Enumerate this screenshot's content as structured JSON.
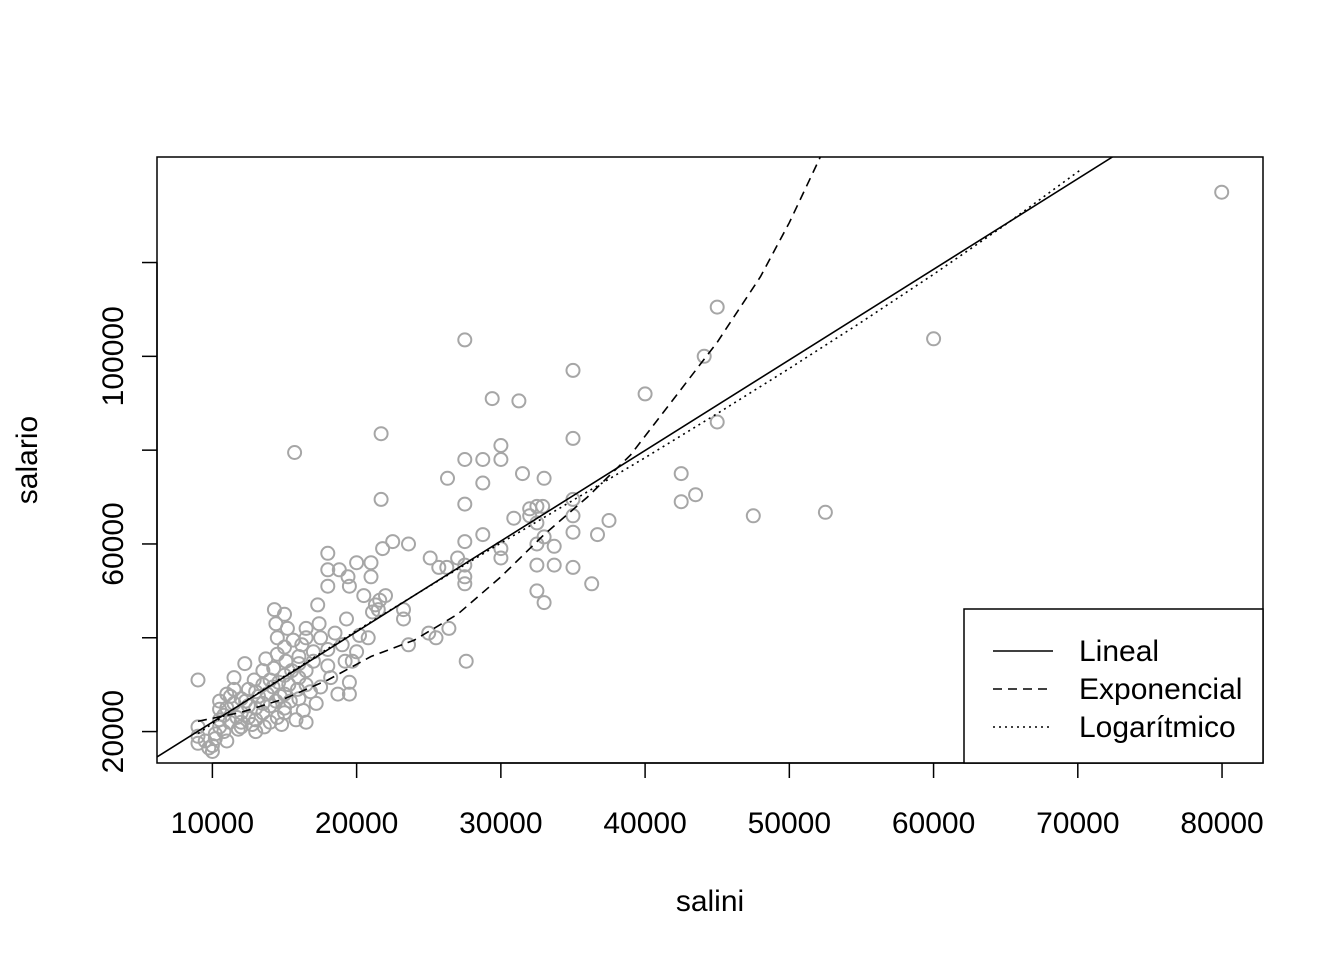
{
  "chart_data": {
    "type": "scatter",
    "title": "",
    "xlabel": "salini",
    "ylabel": "salario",
    "xlim": [
      6160,
      82840
    ],
    "ylim": [
      13300,
      142500
    ],
    "xticks": [
      10000,
      20000,
      30000,
      40000,
      50000,
      60000,
      70000,
      80000
    ],
    "xtick_labels": [
      "10000",
      "20000",
      "30000",
      "40000",
      "50000",
      "60000",
      "70000",
      "80000"
    ],
    "yticks": [
      20000,
      40000,
      60000,
      80000,
      100000,
      120000
    ],
    "ytick_labels": [
      "20000",
      "",
      "60000",
      "",
      "100000",
      ""
    ],
    "grid": false,
    "legend_position": "bottom-right",
    "colors": {
      "points": "#a6a6a6",
      "lines": "#000000"
    },
    "points": [
      [
        9000,
        31000
      ],
      [
        9000,
        21000
      ],
      [
        9000,
        19000
      ],
      [
        9000,
        17500
      ],
      [
        9500,
        18000
      ],
      [
        9750,
        16500
      ],
      [
        10000,
        15750
      ],
      [
        10000,
        17000
      ],
      [
        10200,
        18500
      ],
      [
        10200,
        19500
      ],
      [
        10500,
        21000
      ],
      [
        10500,
        22500
      ],
      [
        10500,
        24750
      ],
      [
        10500,
        26500
      ],
      [
        10800,
        20000
      ],
      [
        10800,
        23500
      ],
      [
        11000,
        25000
      ],
      [
        11000,
        28000
      ],
      [
        11000,
        18000
      ],
      [
        11200,
        22000
      ],
      [
        11250,
        27500
      ],
      [
        11500,
        29000
      ],
      [
        11500,
        31500
      ],
      [
        11500,
        26000
      ],
      [
        11700,
        23000
      ],
      [
        11800,
        20500
      ],
      [
        12000,
        24000
      ],
      [
        12000,
        27000
      ],
      [
        12000,
        22000
      ],
      [
        12000,
        21000
      ],
      [
        12250,
        34500
      ],
      [
        12300,
        26500
      ],
      [
        12500,
        25500
      ],
      [
        12500,
        29000
      ],
      [
        12500,
        23000
      ],
      [
        12750,
        21500
      ],
      [
        12900,
        31000
      ],
      [
        13000,
        28500
      ],
      [
        13000,
        25000
      ],
      [
        13000,
        22500
      ],
      [
        13000,
        20000
      ],
      [
        13200,
        27500
      ],
      [
        13500,
        26000
      ],
      [
        13500,
        30000
      ],
      [
        13500,
        33000
      ],
      [
        13500,
        24000
      ],
      [
        13600,
        21000
      ],
      [
        13700,
        35500
      ],
      [
        13800,
        28000
      ],
      [
        14000,
        25500
      ],
      [
        14000,
        31000
      ],
      [
        14000,
        22000
      ],
      [
        14200,
        29500
      ],
      [
        14250,
        33500
      ],
      [
        14300,
        46000
      ],
      [
        14400,
        43000
      ],
      [
        14400,
        26500
      ],
      [
        14500,
        40000
      ],
      [
        14500,
        36500
      ],
      [
        14500,
        23000
      ],
      [
        14600,
        30500
      ],
      [
        14700,
        27500
      ],
      [
        14800,
        21500
      ],
      [
        15000,
        25000
      ],
      [
        15000,
        32000
      ],
      [
        15000,
        38000
      ],
      [
        15000,
        45000
      ],
      [
        15000,
        28000
      ],
      [
        15000,
        24000
      ],
      [
        15100,
        35000
      ],
      [
        15200,
        42000
      ],
      [
        15300,
        30000
      ],
      [
        15400,
        26500
      ],
      [
        15500,
        33000
      ],
      [
        15600,
        39500
      ],
      [
        15700,
        79500
      ],
      [
        15800,
        22500
      ],
      [
        15900,
        29000
      ],
      [
        16000,
        36000
      ],
      [
        16000,
        31500
      ],
      [
        16000,
        27000
      ],
      [
        16000,
        34500
      ],
      [
        16200,
        38500
      ],
      [
        16300,
        24500
      ],
      [
        16500,
        42000
      ],
      [
        16500,
        30000
      ],
      [
        16500,
        22000
      ],
      [
        16500,
        40000
      ],
      [
        16500,
        33000
      ],
      [
        16800,
        28500
      ],
      [
        17000,
        37000
      ],
      [
        17000,
        35000
      ],
      [
        17200,
        26000
      ],
      [
        17300,
        47000
      ],
      [
        17400,
        43000
      ],
      [
        17500,
        29500
      ],
      [
        17500,
        40000
      ],
      [
        18000,
        58000
      ],
      [
        18000,
        54500
      ],
      [
        18000,
        51000
      ],
      [
        18000,
        37500
      ],
      [
        18000,
        34000
      ],
      [
        18200,
        31500
      ],
      [
        18500,
        41000
      ],
      [
        18700,
        28000
      ],
      [
        18800,
        54500
      ],
      [
        19000,
        38500
      ],
      [
        19200,
        35000
      ],
      [
        19300,
        44000
      ],
      [
        19400,
        53000
      ],
      [
        19500,
        51000
      ],
      [
        19500,
        30500
      ],
      [
        19500,
        28000
      ],
      [
        19700,
        35000
      ],
      [
        20000,
        56000
      ],
      [
        20000,
        37000
      ],
      [
        20200,
        40500
      ],
      [
        20500,
        49000
      ],
      [
        20800,
        40000
      ],
      [
        21000,
        56000
      ],
      [
        21000,
        53000
      ],
      [
        21100,
        45500
      ],
      [
        21300,
        47000
      ],
      [
        21500,
        46000
      ],
      [
        21600,
        48000
      ],
      [
        21700,
        83500
      ],
      [
        21700,
        69500
      ],
      [
        21800,
        59000
      ],
      [
        22000,
        49000
      ],
      [
        22500,
        60500
      ],
      [
        23250,
        46000
      ],
      [
        23250,
        44000
      ],
      [
        23600,
        38500
      ],
      [
        23600,
        60000
      ],
      [
        25000,
        41000
      ],
      [
        25100,
        57000
      ],
      [
        25500,
        40000
      ],
      [
        25700,
        55000
      ],
      [
        26250,
        55000
      ],
      [
        26300,
        74000
      ],
      [
        26400,
        42000
      ],
      [
        27000,
        57000
      ],
      [
        27500,
        78000
      ],
      [
        27500,
        68500
      ],
      [
        27500,
        60500
      ],
      [
        27500,
        55500
      ],
      [
        27500,
        53000
      ],
      [
        27500,
        51500
      ],
      [
        27500,
        103500
      ],
      [
        27600,
        35000
      ],
      [
        28750,
        78000
      ],
      [
        28750,
        73000
      ],
      [
        28750,
        62000
      ],
      [
        29400,
        91000
      ],
      [
        30000,
        81000
      ],
      [
        30000,
        78000
      ],
      [
        30000,
        59000
      ],
      [
        30000,
        57000
      ],
      [
        30900,
        65500
      ],
      [
        31250,
        90500
      ],
      [
        31500,
        75000
      ],
      [
        32000,
        67500
      ],
      [
        32000,
        66000
      ],
      [
        32500,
        68000
      ],
      [
        32500,
        64500
      ],
      [
        32500,
        60000
      ],
      [
        32500,
        55500
      ],
      [
        32500,
        50000
      ],
      [
        32900,
        68000
      ],
      [
        33000,
        74000
      ],
      [
        33000,
        47500
      ],
      [
        33000,
        61500
      ],
      [
        33700,
        59500
      ],
      [
        33700,
        55500
      ],
      [
        35000,
        97000
      ],
      [
        35000,
        82500
      ],
      [
        35000,
        69500
      ],
      [
        35000,
        66000
      ],
      [
        35000,
        62500
      ],
      [
        35000,
        55000
      ],
      [
        36300,
        51500
      ],
      [
        36700,
        62000
      ],
      [
        37500,
        65000
      ],
      [
        40000,
        92000
      ],
      [
        42500,
        75000
      ],
      [
        42500,
        69000
      ],
      [
        43500,
        70500
      ],
      [
        44100,
        100000
      ],
      [
        45000,
        110500
      ],
      [
        45000,
        86000
      ],
      [
        47500,
        66000
      ],
      [
        52500,
        66750
      ],
      [
        60000,
        103750
      ],
      [
        79980,
        135000
      ]
    ],
    "series": [
      {
        "name": "Lineal",
        "style": "solid",
        "x": [
          6160,
          72400
        ],
        "y": [
          14570,
          142500
        ]
      },
      {
        "name": "Exponencial",
        "style": "dashed",
        "x": [
          9000,
          12000,
          15000,
          18000,
          21000,
          24000,
          27000,
          30000,
          33000,
          36000,
          39000,
          42000,
          45000,
          48000,
          50000,
          52150
        ],
        "y": [
          22200,
          24100,
          27000,
          31000,
          36000,
          39500,
          45000,
          53000,
          62000,
          70000,
          79000,
          91000,
          103000,
          117000,
          128500,
          142500
        ]
      },
      {
        "name": "Logarítmico",
        "style": "dotted",
        "x": [
          9000,
          12000,
          16000,
          20000,
          25000,
          30000,
          35000,
          40000,
          45000,
          50000,
          55000,
          60000,
          65000,
          70300
        ],
        "y": [
          19600,
          25900,
          33800,
          41500,
          50900,
          60200,
          69300,
          78400,
          87800,
          97400,
          107300,
          117500,
          128100,
          140000
        ]
      }
    ]
  }
}
